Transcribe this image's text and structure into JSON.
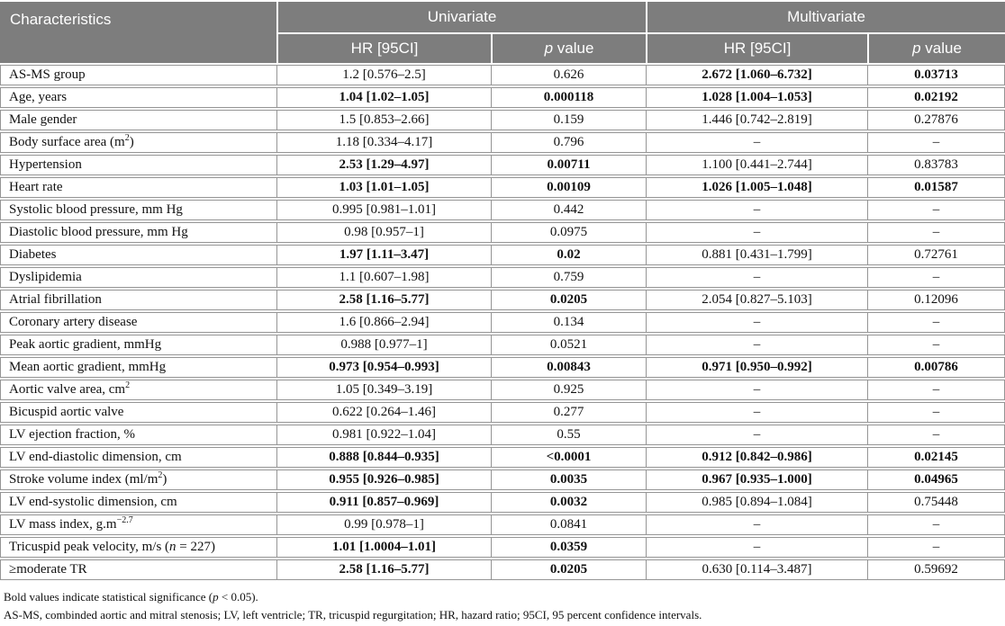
{
  "table": {
    "header": {
      "characteristics": "Characteristics",
      "univariate": "Univariate",
      "multivariate": "Multivariate",
      "hr_label": "HR [95CI]",
      "p_label_html": "<span class=\"p-it\">p</span> value"
    },
    "rows": [
      {
        "char": "AS-MS group",
        "cells": [
          {
            "text": "1.2 [0.576–2.5]",
            "bold": false
          },
          {
            "text": "0.626",
            "bold": false
          },
          {
            "text": "2.672 [1.060–6.732]",
            "bold": true
          },
          {
            "text": "0.03713",
            "bold": true
          }
        ]
      },
      {
        "char": "Age, years",
        "cells": [
          {
            "text": "1.04 [1.02–1.05]",
            "bold": true
          },
          {
            "text": "0.000118",
            "bold": true
          },
          {
            "text": "1.028 [1.004–1.053]",
            "bold": true
          },
          {
            "text": "0.02192",
            "bold": true
          }
        ]
      },
      {
        "char": "Male gender",
        "cells": [
          {
            "text": "1.5 [0.853–2.66]",
            "bold": false
          },
          {
            "text": "0.159",
            "bold": false
          },
          {
            "text": "1.446 [0.742–2.819]",
            "bold": false
          },
          {
            "text": "0.27876",
            "bold": false
          }
        ]
      },
      {
        "char": "Body surface area (m<sup>2</sup>)",
        "cells": [
          {
            "text": "1.18 [0.334–4.17]",
            "bold": false
          },
          {
            "text": "0.796",
            "bold": false
          },
          {
            "text": "–",
            "bold": false
          },
          {
            "text": "–",
            "bold": false
          }
        ]
      },
      {
        "char": "Hypertension",
        "cells": [
          {
            "text": "2.53 [1.29–4.97]",
            "bold": true
          },
          {
            "text": "0.00711",
            "bold": true
          },
          {
            "text": "1.100 [0.441–2.744]",
            "bold": false
          },
          {
            "text": "0.83783",
            "bold": false
          }
        ]
      },
      {
        "char": "Heart rate",
        "cells": [
          {
            "text": "1.03 [1.01–1.05]",
            "bold": true
          },
          {
            "text": "0.00109",
            "bold": true
          },
          {
            "text": "1.026 [1.005–1.048]",
            "bold": true
          },
          {
            "text": "0.01587",
            "bold": true
          }
        ]
      },
      {
        "char": "Systolic blood pressure, mm Hg",
        "cells": [
          {
            "text": "0.995 [0.981–1.01]",
            "bold": false
          },
          {
            "text": "0.442",
            "bold": false
          },
          {
            "text": "–",
            "bold": false
          },
          {
            "text": "–",
            "bold": false
          }
        ]
      },
      {
        "char": "Diastolic blood pressure, mm Hg",
        "cells": [
          {
            "text": "0.98 [0.957–1]",
            "bold": false
          },
          {
            "text": "0.0975",
            "bold": false
          },
          {
            "text": "–",
            "bold": false
          },
          {
            "text": "–",
            "bold": false
          }
        ]
      },
      {
        "char": "Diabetes",
        "cells": [
          {
            "text": "1.97 [1.11–3.47]",
            "bold": true
          },
          {
            "text": "0.02",
            "bold": true
          },
          {
            "text": "0.881 [0.431–1.799]",
            "bold": false
          },
          {
            "text": "0.72761",
            "bold": false
          }
        ]
      },
      {
        "char": "Dyslipidemia",
        "cells": [
          {
            "text": "1.1 [0.607–1.98]",
            "bold": false
          },
          {
            "text": "0.759",
            "bold": false
          },
          {
            "text": "–",
            "bold": false
          },
          {
            "text": "–",
            "bold": false
          }
        ]
      },
      {
        "char": "Atrial fibrillation",
        "cells": [
          {
            "text": "2.58 [1.16–5.77]",
            "bold": true
          },
          {
            "text": "0.0205",
            "bold": true
          },
          {
            "text": "2.054 [0.827–5.103]",
            "bold": false
          },
          {
            "text": "0.12096",
            "bold": false
          }
        ]
      },
      {
        "char": "Coronary artery disease",
        "cells": [
          {
            "text": "1.6 [0.866–2.94]",
            "bold": false
          },
          {
            "text": "0.134",
            "bold": false
          },
          {
            "text": "–",
            "bold": false
          },
          {
            "text": "–",
            "bold": false
          }
        ]
      },
      {
        "char": "Peak aortic gradient, mmHg",
        "cells": [
          {
            "text": "0.988 [0.977–1]",
            "bold": false
          },
          {
            "text": "0.0521",
            "bold": false
          },
          {
            "text": "–",
            "bold": false
          },
          {
            "text": "–",
            "bold": false
          }
        ]
      },
      {
        "char": "Mean aortic gradient, mmHg",
        "cells": [
          {
            "text": "0.973 [0.954–0.993]",
            "bold": true
          },
          {
            "text": "0.00843",
            "bold": true
          },
          {
            "text": "0.971 [0.950–0.992]",
            "bold": true
          },
          {
            "text": "0.00786",
            "bold": true
          }
        ]
      },
      {
        "char": "Aortic valve area, cm<sup>2</sup>",
        "cells": [
          {
            "text": "1.05 [0.349–3.19]",
            "bold": false
          },
          {
            "text": "0.925",
            "bold": false
          },
          {
            "text": "–",
            "bold": false
          },
          {
            "text": "–",
            "bold": false
          }
        ]
      },
      {
        "char": "Bicuspid aortic valve",
        "cells": [
          {
            "text": "0.622 [0.264–1.46]",
            "bold": false
          },
          {
            "text": "0.277",
            "bold": false
          },
          {
            "text": "–",
            "bold": false
          },
          {
            "text": "–",
            "bold": false
          }
        ]
      },
      {
        "char": "LV ejection fraction, %",
        "cells": [
          {
            "text": "0.981 [0.922–1.04]",
            "bold": false
          },
          {
            "text": "0.55",
            "bold": false
          },
          {
            "text": "–",
            "bold": false
          },
          {
            "text": "–",
            "bold": false
          }
        ]
      },
      {
        "char": "LV end-diastolic dimension, cm",
        "cells": [
          {
            "text": "0.888 [0.844–0.935]",
            "bold": true
          },
          {
            "text": "<0.0001",
            "bold": true
          },
          {
            "text": "0.912 [0.842–0.986]",
            "bold": true
          },
          {
            "text": "0.02145",
            "bold": true
          }
        ]
      },
      {
        "char": "Stroke volume index (ml/m<sup>2</sup>)",
        "cells": [
          {
            "text": "0.955 [0.926–0.985]",
            "bold": true
          },
          {
            "text": "0.0035",
            "bold": true
          },
          {
            "text": "0.967 [0.935–1.000]",
            "bold": true
          },
          {
            "text": "0.04965",
            "bold": true
          }
        ]
      },
      {
        "char": "LV end-systolic dimension, cm",
        "cells": [
          {
            "text": "0.911 [0.857–0.969]",
            "bold": true
          },
          {
            "text": "0.0032",
            "bold": true
          },
          {
            "text": "0.985 [0.894–1.084]",
            "bold": false
          },
          {
            "text": "0.75448",
            "bold": false
          }
        ]
      },
      {
        "char": "LV mass index, g.m<sup>−2.7</sup>",
        "cells": [
          {
            "text": "0.99 [0.978–1]",
            "bold": false
          },
          {
            "text": "0.0841",
            "bold": false
          },
          {
            "text": "–",
            "bold": false
          },
          {
            "text": "–",
            "bold": false
          }
        ]
      },
      {
        "char": "Tricuspid peak velocity, m/s (<span class=\"p-it\">n</span> = 227)",
        "cells": [
          {
            "text": "1.01 [1.0004–1.01]",
            "bold": true
          },
          {
            "text": "0.0359",
            "bold": true
          },
          {
            "text": "–",
            "bold": false
          },
          {
            "text": "–",
            "bold": false
          }
        ]
      },
      {
        "char": "≥moderate TR",
        "cells": [
          {
            "text": "2.58 [1.16–5.77]",
            "bold": true
          },
          {
            "text": "0.0205",
            "bold": true
          },
          {
            "text": "0.630 [0.114–3.487]",
            "bold": false
          },
          {
            "text": "0.59692",
            "bold": false
          }
        ]
      }
    ]
  },
  "footnotes": [
    "Bold values indicate statistical significance (<span class=\"p-it\">p</span> &lt; 0.05).",
    "AS-MS, combinded aortic and mitral stenosis; LV, left ventricle; TR, tricuspid regurgitation; HR, hazard ratio; 95CI, 95 percent confidence intervals."
  ],
  "colors": {
    "header_bg": "#7d7d7d",
    "header_text": "#ffffff",
    "border": "#959595",
    "body_text": "#111111"
  }
}
